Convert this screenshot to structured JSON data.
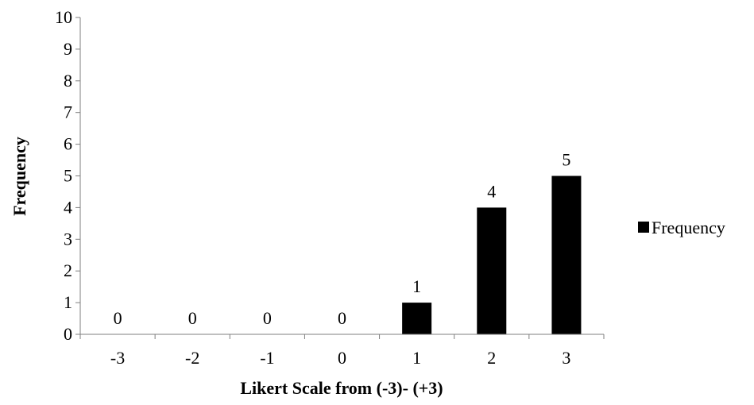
{
  "chart_data": {
    "type": "bar",
    "categories": [
      "-3",
      "-2",
      "-1",
      "0",
      "1",
      "2",
      "3"
    ],
    "series": [
      {
        "name": "Frequency",
        "values": [
          0,
          0,
          0,
          0,
          1,
          4,
          5
        ]
      }
    ],
    "xlabel": "Likert Scale from (-3)- (+3)",
    "ylabel": "Frequency",
    "ylim": [
      0,
      10
    ],
    "yticks": [
      "0",
      "1",
      "2",
      "3",
      "4",
      "5",
      "6",
      "7",
      "8",
      "9",
      "10"
    ],
    "data_labels": [
      "0",
      "0",
      "0",
      "0",
      "1",
      "4",
      "5"
    ],
    "grid": false,
    "legend": {
      "position": "right",
      "entries": [
        "Frequency"
      ]
    },
    "bar_color": "#000000"
  }
}
